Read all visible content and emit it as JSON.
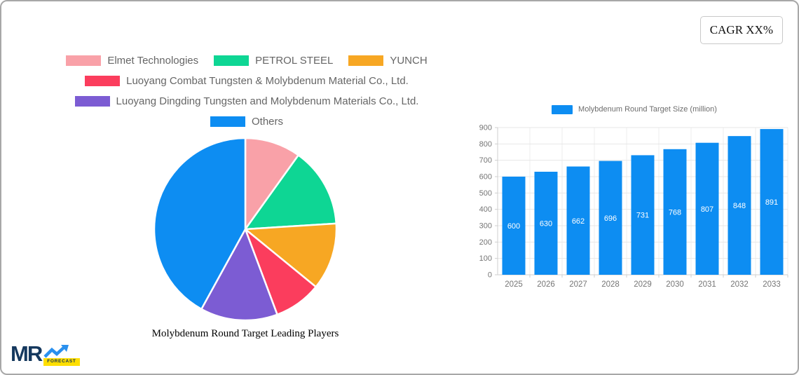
{
  "header": {
    "cagr_label": "CAGR XX%"
  },
  "logo": {
    "text": "MR",
    "badge": "FORECAST"
  },
  "chart_data": [
    {
      "type": "pie",
      "title": "Molybdenum Round Target Leading Players",
      "labels": [
        "Elmet Technologies",
        "PETROL STEEL",
        "YUNCH",
        "Luoyang Combat Tungsten & Molybdenum Material Co., Ltd.",
        "Luoyang Dingding Tungsten and Molybdenum Materials Co., Ltd.",
        "Others"
      ],
      "values_percent": [
        9.9,
        14.1,
        11.9,
        8.4,
        13.7,
        42.0
      ],
      "colors": [
        "#f9a1a8",
        "#0ed694",
        "#f7a723",
        "#fb3d5d",
        "#7c5cd3",
        "#0d8df2"
      ],
      "start_angle_deg": 0,
      "direction": "clockwise",
      "legend_position": "top"
    },
    {
      "type": "bar",
      "legend": "Molybdenum Round Target Size (million)",
      "categories": [
        "2025",
        "2026",
        "2027",
        "2028",
        "2029",
        "2030",
        "2031",
        "2032",
        "2033"
      ],
      "values": [
        600,
        630,
        662,
        696,
        731,
        768,
        807,
        848,
        891
      ],
      "bar_color": "#0d8df2",
      "value_label_color": "#ffffff",
      "axis_text_color": "#757575",
      "ylim": [
        0,
        900
      ],
      "yticks": [
        0,
        100,
        200,
        300,
        400,
        500,
        600,
        700,
        800,
        900
      ],
      "grid": true,
      "legend_position": "top"
    }
  ]
}
